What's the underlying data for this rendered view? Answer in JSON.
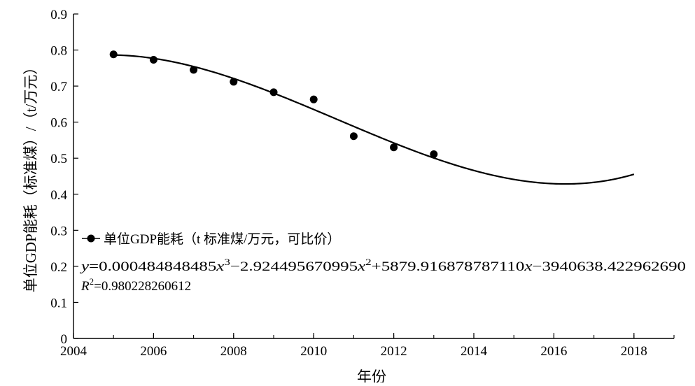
{
  "chart_data": {
    "type": "scatter",
    "xlabel": "年份",
    "ylabel": "单位GDP能耗（标准煤）/（t/万元）",
    "xlim": [
      2004,
      2019
    ],
    "ylim": [
      0,
      0.9
    ],
    "x_ticks": [
      "2004",
      "2006",
      "2008",
      "2010",
      "2012",
      "2014",
      "2016",
      "2018"
    ],
    "y_ticks": [
      "0",
      "0.1",
      "0.2",
      "0.3",
      "0.4",
      "0.5",
      "0.6",
      "0.7",
      "0.8",
      "0.9"
    ],
    "grid": false,
    "legend_position": "middle-left",
    "series": [
      {
        "name": "单位GDP能耗（t 标准煤/万元，可比价）",
        "x": [
          2005,
          2006,
          2007,
          2008,
          2009,
          2010,
          2011,
          2012,
          2013
        ],
        "y": [
          0.788,
          0.773,
          0.745,
          0.712,
          0.683,
          0.663,
          0.561,
          0.53,
          0.511
        ],
        "color": "#000000",
        "marker": "circle"
      }
    ],
    "trendline": {
      "type": "polynomial",
      "degree": 3,
      "x_range": [
        2005,
        2018
      ],
      "coefficients": [
        0.000484848485,
        -2.924495670995,
        5879.91687878711,
        -3940638.42296269
      ],
      "equation_parts": {
        "y": "y",
        "c0": "=0.000484848485",
        "x1": "x",
        "e1": "3",
        "c1": "−2.924495670995",
        "x2": "x",
        "e2": "2",
        "c2": "+5879.916878787110",
        "x3": "x",
        "c3": "−3940638.422962690"
      },
      "r2_parts": {
        "r": "R",
        "exp": "2",
        "value": "=0.980228260612"
      }
    }
  }
}
